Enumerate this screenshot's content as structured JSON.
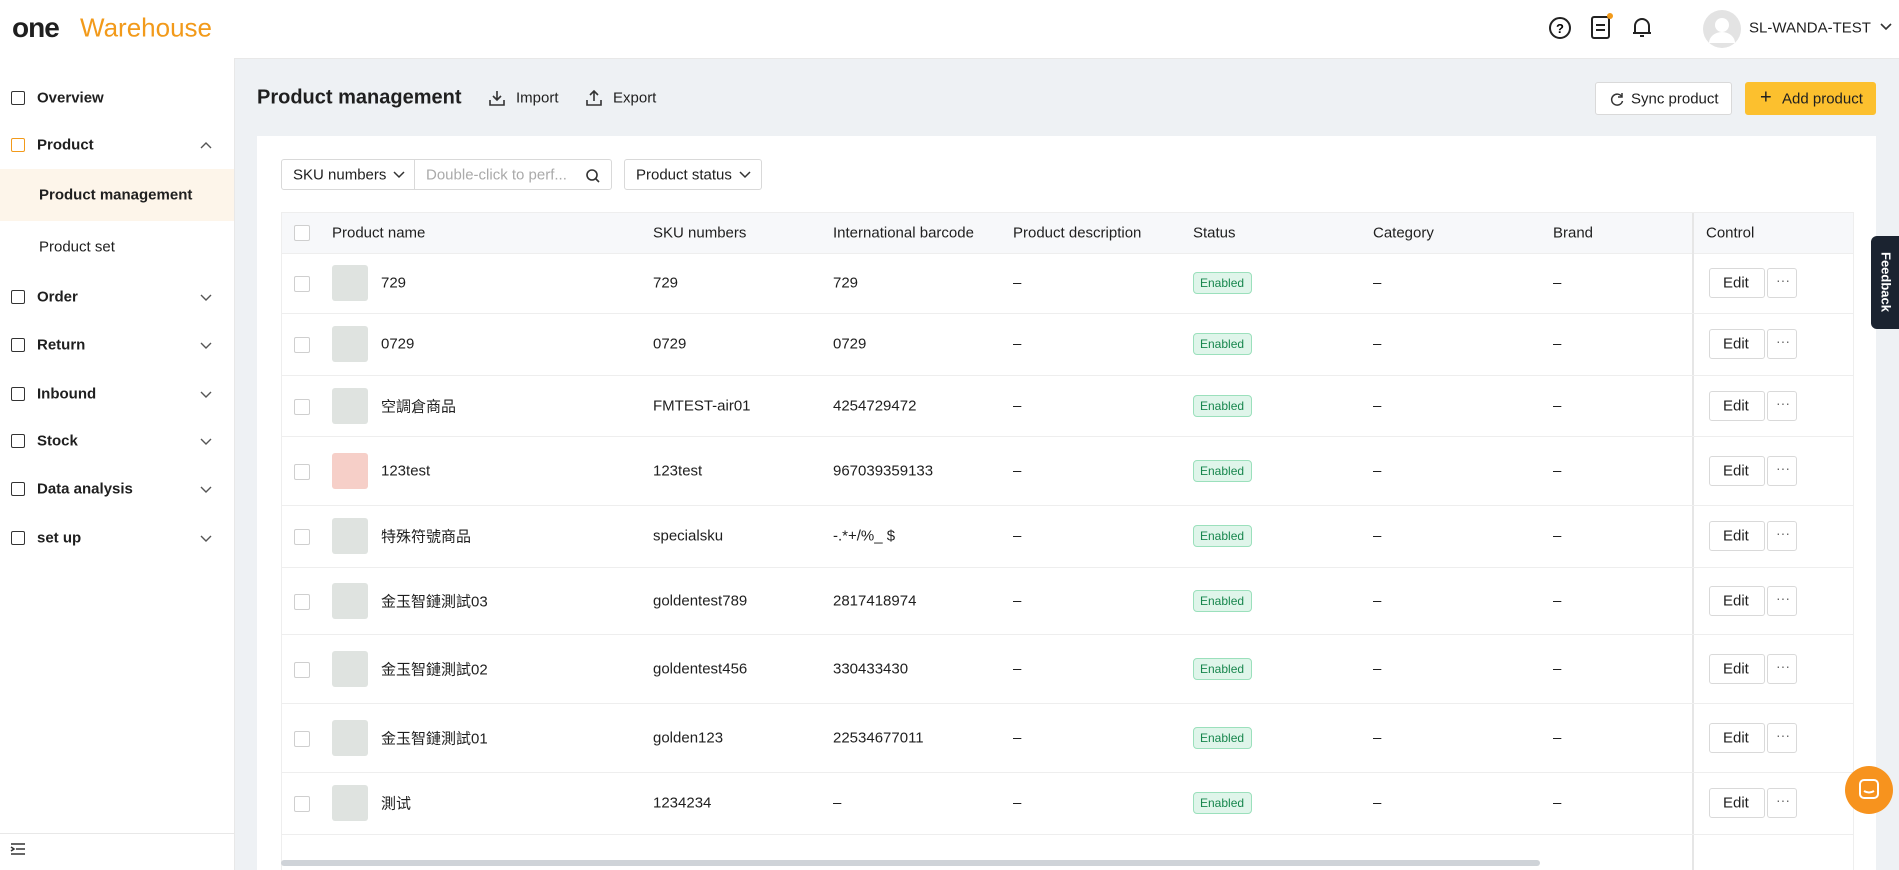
{
  "header": {
    "logo_one": "one",
    "logo_warehouse": "Warehouse",
    "user": "SL-WANDA-TEST"
  },
  "sidebar": {
    "menu": [
      "Overview",
      "Product",
      "Order",
      "Return",
      "Inbound",
      "Stock",
      "Data analysis",
      "set up"
    ],
    "submenu": [
      "Product management",
      "Product set"
    ]
  },
  "page": {
    "title": "Product management",
    "import": "Import",
    "export": "Export",
    "sync": "Sync product",
    "add": "Add product"
  },
  "filters": {
    "sku_select": "SKU numbers",
    "search_placeholder": "Double-click to perf...",
    "status_select": "Product status"
  },
  "table": {
    "columns": [
      "Product name",
      "SKU numbers",
      "International barcode",
      "Product description",
      "Status",
      "Category",
      "Brand",
      "Control"
    ],
    "rows": [
      [
        "729",
        "729",
        "729",
        "–",
        "Enabled",
        "–",
        "–",
        "Edit"
      ],
      [
        "0729",
        "0729",
        "0729",
        "–",
        "Enabled",
        "–",
        "–",
        "Edit"
      ],
      [
        "空調倉商品",
        "FMTEST-air01",
        "4254729472",
        "–",
        "Enabled",
        "–",
        "–",
        "Edit"
      ],
      [
        "123test",
        "123test",
        "967039359133",
        "–",
        "Enabled",
        "–",
        "–",
        "Edit"
      ],
      [
        "特殊符號商品",
        "specialsku",
        "-.*+/%_ $",
        "–",
        "Enabled",
        "–",
        "–",
        "Edit"
      ],
      [
        "金玉智鏈測試03",
        "goldentest789",
        "2817418974",
        "–",
        "Enabled",
        "–",
        "–",
        "Edit"
      ],
      [
        "金玉智鏈測試02",
        "goldentest456",
        "330433430",
        "–",
        "Enabled",
        "–",
        "–",
        "Edit"
      ],
      [
        "金玉智鏈測試01",
        "golden123",
        "22534677011",
        "–",
        "Enabled",
        "–",
        "–",
        "Edit"
      ],
      [
        "測试",
        "1234234",
        "–",
        "–",
        "Enabled",
        "–",
        "–",
        "Edit"
      ]
    ]
  },
  "feedback": "Feedback"
}
